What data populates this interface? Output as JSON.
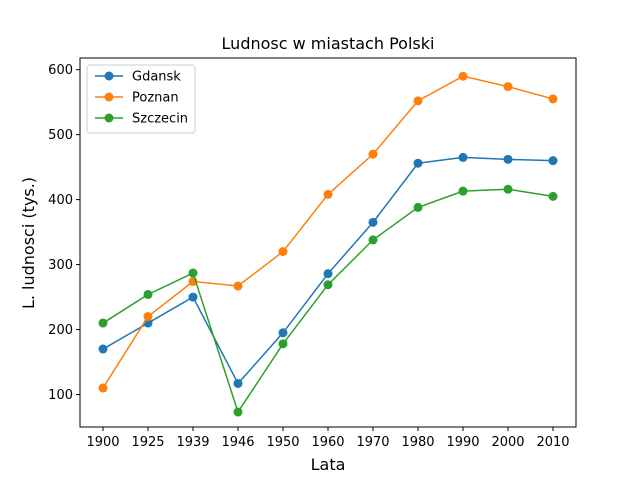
{
  "chart_data": {
    "type": "line",
    "title": "Ludnosc w miastach Polski",
    "xlabel": "Lata",
    "ylabel": "L. ludnosci (tys.)",
    "categories": [
      "1900",
      "1925",
      "1939",
      "1946",
      "1950",
      "1960",
      "1970",
      "1980",
      "1990",
      "2000",
      "2010"
    ],
    "yticks": [
      100,
      200,
      300,
      400,
      500,
      600
    ],
    "ylim": [
      50,
      618
    ],
    "grid": false,
    "legend_position": "top-left",
    "series": [
      {
        "name": "Gdansk",
        "color": "#1f77b4",
        "values": [
          170,
          210,
          250,
          117,
          195,
          286,
          365,
          456,
          465,
          462,
          460
        ]
      },
      {
        "name": "Poznan",
        "color": "#ff7f0e",
        "values": [
          110,
          220,
          274,
          267,
          320,
          408,
          470,
          552,
          590,
          574,
          555
        ]
      },
      {
        "name": "Szczecin",
        "color": "#2ca02c",
        "values": [
          210,
          254,
          287,
          73,
          178,
          269,
          338,
          388,
          413,
          416,
          405
        ]
      }
    ]
  }
}
